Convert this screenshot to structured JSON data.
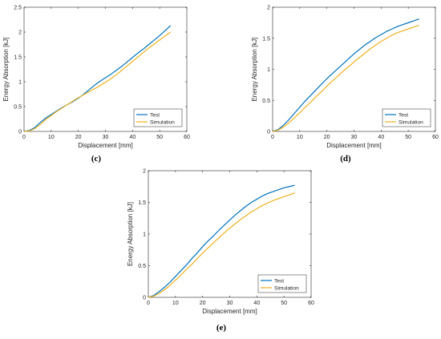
{
  "chart_data": [
    {
      "type": "line",
      "panel_label": "(c)",
      "xlabel": "Displacement [mm]",
      "ylabel": "Energy Absorption [kJ]",
      "xlim": [
        0,
        60
      ],
      "ylim": [
        0,
        2.5
      ],
      "xticks": [
        "0",
        "10",
        "20",
        "30",
        "40",
        "50",
        "60"
      ],
      "yticks": [
        "0",
        "0.5",
        "1",
        "1.5",
        "2",
        "2.5"
      ],
      "legend_position": "bottom-right",
      "series": [
        {
          "name": "Test",
          "color": "#0072BD",
          "x": [
            0,
            2,
            4,
            6,
            8,
            10,
            12,
            14,
            16,
            18,
            20,
            22,
            24,
            26,
            28,
            30,
            32,
            34,
            36,
            38,
            40,
            42,
            44,
            46,
            48,
            50,
            52,
            54
          ],
          "y": [
            0,
            0.02,
            0.08,
            0.18,
            0.27,
            0.34,
            0.41,
            0.48,
            0.54,
            0.6,
            0.67,
            0.75,
            0.84,
            0.93,
            1.01,
            1.08,
            1.15,
            1.23,
            1.31,
            1.4,
            1.49,
            1.58,
            1.66,
            1.75,
            1.84,
            1.93,
            2.03,
            2.13
          ]
        },
        {
          "name": "Simulation",
          "color": "#EDB120",
          "x": [
            0,
            2,
            4,
            6,
            8,
            10,
            12,
            14,
            16,
            18,
            20,
            22,
            24,
            26,
            28,
            30,
            32,
            34,
            36,
            38,
            40,
            42,
            44,
            46,
            48,
            50,
            52,
            54
          ],
          "y": [
            0,
            0.01,
            0.06,
            0.14,
            0.24,
            0.32,
            0.4,
            0.47,
            0.54,
            0.61,
            0.68,
            0.74,
            0.8,
            0.86,
            0.92,
            0.99,
            1.06,
            1.14,
            1.23,
            1.32,
            1.41,
            1.5,
            1.59,
            1.68,
            1.76,
            1.84,
            1.92,
            2.0
          ]
        }
      ]
    },
    {
      "type": "line",
      "panel_label": "(d)",
      "xlabel": "Displacement [mm]",
      "ylabel": "Energy Absorption [kJ]",
      "xlim": [
        0,
        60
      ],
      "ylim": [
        0,
        2
      ],
      "xticks": [
        "0",
        "10",
        "20",
        "30",
        "40",
        "50",
        "60"
      ],
      "yticks": [
        "0",
        "0.5",
        "1",
        "1.5",
        "2"
      ],
      "legend_position": "bottom-right",
      "series": [
        {
          "name": "Test",
          "color": "#0072BD",
          "x": [
            0,
            2,
            4,
            6,
            8,
            10,
            12,
            14,
            16,
            18,
            20,
            22,
            24,
            26,
            28,
            30,
            32,
            34,
            36,
            38,
            40,
            42,
            44,
            46,
            48,
            50,
            52,
            54
          ],
          "y": [
            0,
            0.03,
            0.1,
            0.19,
            0.29,
            0.39,
            0.49,
            0.58,
            0.67,
            0.76,
            0.85,
            0.93,
            1.01,
            1.09,
            1.17,
            1.25,
            1.32,
            1.39,
            1.45,
            1.51,
            1.56,
            1.61,
            1.65,
            1.69,
            1.72,
            1.75,
            1.78,
            1.81
          ]
        },
        {
          "name": "Simulation",
          "color": "#EDB120",
          "x": [
            0,
            2,
            4,
            6,
            8,
            10,
            12,
            14,
            16,
            18,
            20,
            22,
            24,
            26,
            28,
            30,
            32,
            34,
            36,
            38,
            40,
            42,
            44,
            46,
            48,
            50,
            52,
            54
          ],
          "y": [
            0,
            0.02,
            0.07,
            0.14,
            0.22,
            0.3,
            0.39,
            0.47,
            0.56,
            0.64,
            0.73,
            0.81,
            0.89,
            0.97,
            1.04,
            1.12,
            1.19,
            1.26,
            1.33,
            1.39,
            1.45,
            1.5,
            1.55,
            1.59,
            1.62,
            1.65,
            1.68,
            1.71
          ]
        }
      ]
    },
    {
      "type": "line",
      "panel_label": "(e)",
      "xlabel": "Displacement [mm]",
      "ylabel": "Energy Absorption [kJ]",
      "xlim": [
        0,
        60
      ],
      "ylim": [
        0,
        2
      ],
      "xticks": [
        "0",
        "10",
        "20",
        "30",
        "40",
        "50",
        "60"
      ],
      "yticks": [
        "0",
        "0.5",
        "1",
        "1.5",
        "2"
      ],
      "legend_position": "bottom-right",
      "series": [
        {
          "name": "Test",
          "color": "#0072BD",
          "x": [
            0,
            2,
            4,
            6,
            8,
            10,
            12,
            14,
            16,
            18,
            20,
            22,
            24,
            26,
            28,
            30,
            32,
            34,
            36,
            38,
            40,
            42,
            44,
            46,
            48,
            50,
            52,
            54
          ],
          "y": [
            0,
            0.03,
            0.09,
            0.16,
            0.24,
            0.33,
            0.42,
            0.51,
            0.61,
            0.7,
            0.8,
            0.89,
            0.97,
            1.06,
            1.14,
            1.22,
            1.3,
            1.37,
            1.44,
            1.5,
            1.55,
            1.6,
            1.64,
            1.67,
            1.7,
            1.73,
            1.75,
            1.77
          ]
        },
        {
          "name": "Simulation",
          "color": "#EDB120",
          "x": [
            0,
            2,
            4,
            6,
            8,
            10,
            12,
            14,
            16,
            18,
            20,
            22,
            24,
            26,
            28,
            30,
            32,
            34,
            36,
            38,
            40,
            42,
            44,
            46,
            48,
            50,
            52,
            54
          ],
          "y": [
            0,
            0.02,
            0.06,
            0.12,
            0.19,
            0.27,
            0.35,
            0.44,
            0.52,
            0.61,
            0.7,
            0.78,
            0.86,
            0.94,
            1.02,
            1.09,
            1.16,
            1.23,
            1.29,
            1.35,
            1.4,
            1.45,
            1.49,
            1.53,
            1.56,
            1.59,
            1.62,
            1.65
          ]
        }
      ]
    }
  ]
}
